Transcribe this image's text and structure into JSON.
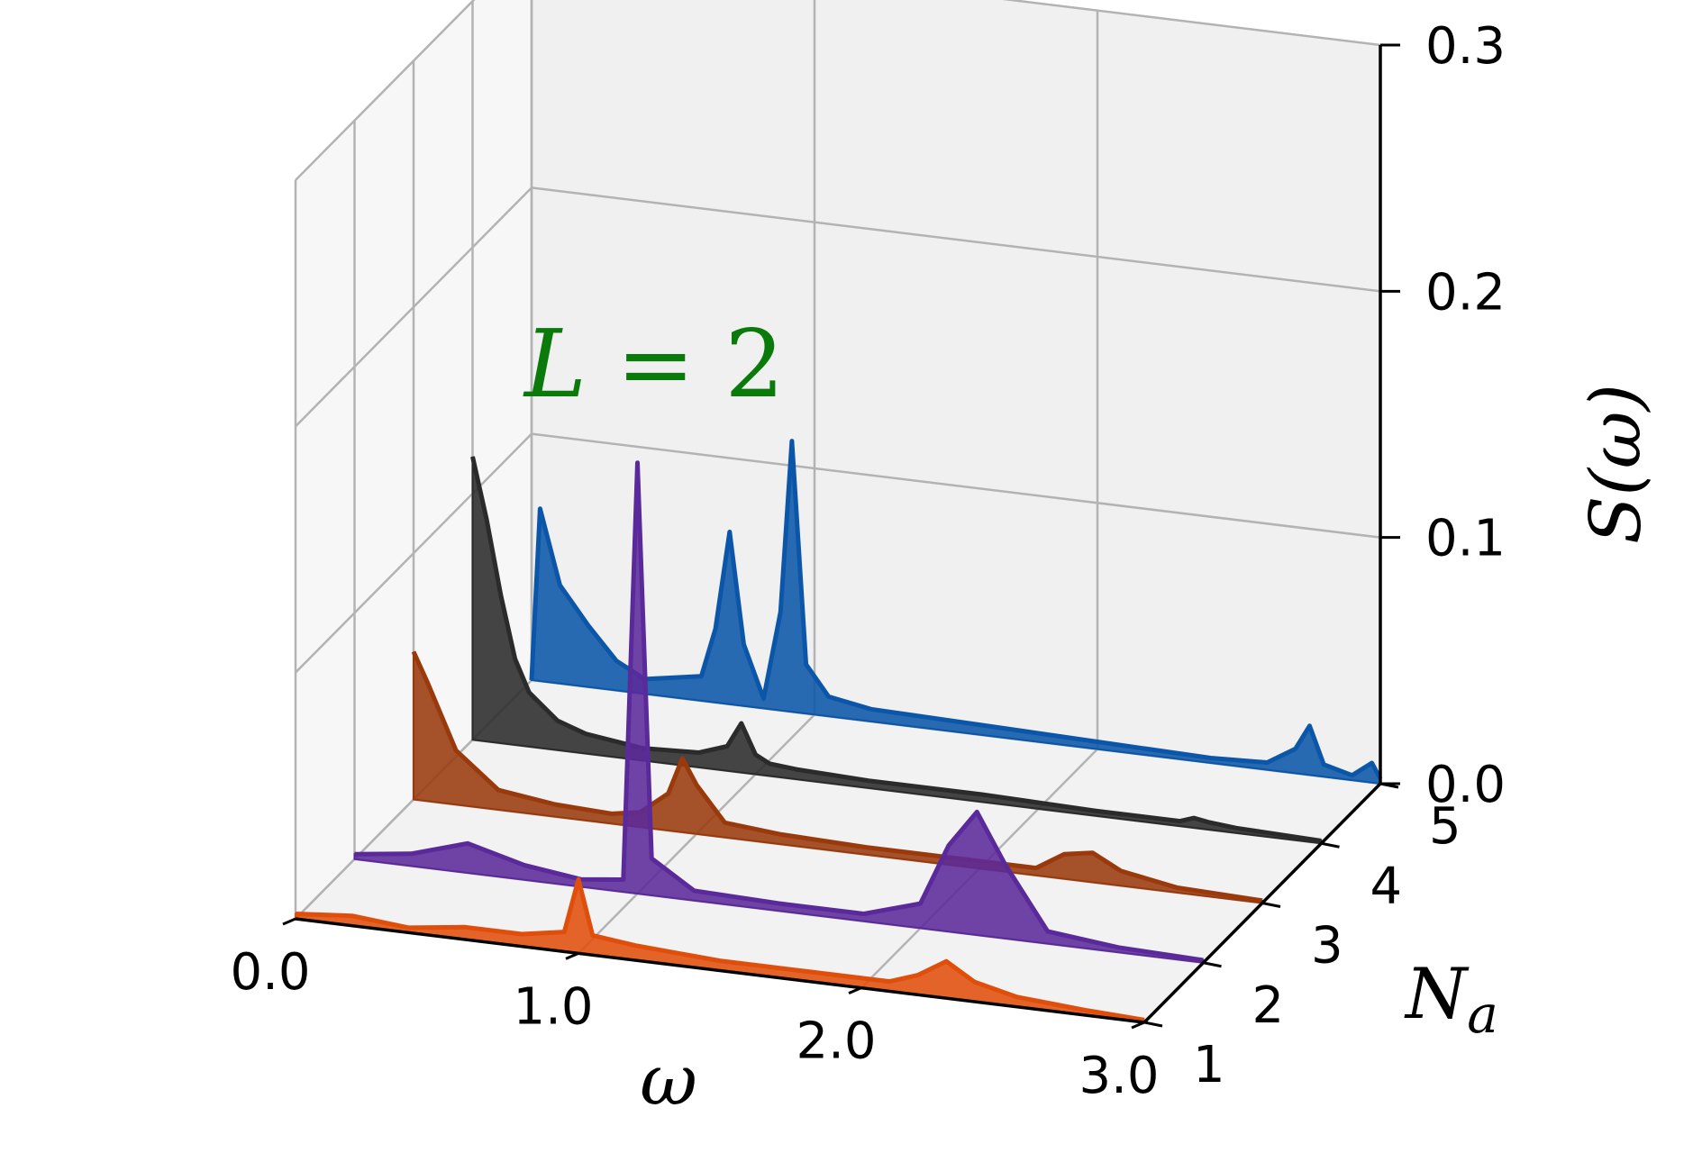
{
  "chart_data": {
    "type": "area",
    "annotation": {
      "var": "L",
      "eq": " = 2"
    },
    "xlabel": "ω",
    "ylabel_var": "N",
    "ylabel_sub": "a",
    "zlabel": "S(ω)",
    "xlim": [
      0.0,
      3.0
    ],
    "ylim": [
      1,
      5
    ],
    "zlim": [
      0.0,
      0.3
    ],
    "xticks": [
      "0.0",
      "1.0",
      "2.0",
      "3.0"
    ],
    "yticks": [
      "1",
      "2",
      "3",
      "4",
      "5"
    ],
    "zticks": [
      "0.0",
      "0.1",
      "0.2",
      "0.3"
    ],
    "grid": true,
    "colors": {
      "series_1": "#e04e0c",
      "series_2": "#5b2a9a",
      "series_3": "#9a3a0c",
      "series_4": "#2b2b2b",
      "series_5": "#0b56a8",
      "annotation": "#0a7a0a"
    },
    "series": [
      {
        "na": 1,
        "color_key": "series_1",
        "x": [
          0.0,
          0.2,
          0.4,
          0.6,
          0.8,
          0.95,
          1.0,
          1.05,
          1.2,
          1.5,
          1.8,
          2.1,
          2.2,
          2.3,
          2.4,
          2.55,
          2.8,
          3.0
        ],
        "z": [
          0.002,
          0.004,
          0.002,
          0.005,
          0.005,
          0.008,
          0.03,
          0.008,
          0.006,
          0.004,
          0.004,
          0.004,
          0.008,
          0.015,
          0.008,
          0.004,
          0.002,
          0.001
        ]
      },
      {
        "na": 2,
        "color_key": "series_2",
        "x": [
          0.0,
          0.2,
          0.4,
          0.6,
          0.8,
          0.95,
          1.0,
          1.05,
          1.2,
          1.5,
          1.8,
          2.0,
          2.1,
          2.2,
          2.3,
          2.45,
          2.7,
          3.0
        ],
        "z": [
          0.002,
          0.005,
          0.012,
          0.006,
          0.003,
          0.005,
          0.175,
          0.015,
          0.004,
          0.003,
          0.003,
          0.01,
          0.035,
          0.05,
          0.03,
          0.005,
          0.002,
          0.001
        ]
      },
      {
        "na": 3,
        "color_key": "series_3",
        "x": [
          0.0,
          0.05,
          0.15,
          0.3,
          0.5,
          0.7,
          0.8,
          0.9,
          0.95,
          1.0,
          1.1,
          1.3,
          1.6,
          1.9,
          2.2,
          2.3,
          2.4,
          2.5,
          2.7,
          3.0
        ],
        "z": [
          0.06,
          0.048,
          0.022,
          0.008,
          0.005,
          0.004,
          0.006,
          0.015,
          0.03,
          0.02,
          0.006,
          0.004,
          0.003,
          0.003,
          0.003,
          0.01,
          0.012,
          0.006,
          0.002,
          0.001
        ]
      },
      {
        "na": 4,
        "color_key": "series_4",
        "x": [
          0.0,
          0.05,
          0.1,
          0.15,
          0.2,
          0.3,
          0.4,
          0.6,
          0.8,
          0.9,
          0.95,
          1.0,
          1.05,
          1.15,
          1.4,
          1.8,
          2.2,
          2.5,
          2.55,
          2.6,
          2.7,
          3.0
        ],
        "z": [
          0.115,
          0.09,
          0.06,
          0.035,
          0.022,
          0.012,
          0.008,
          0.005,
          0.006,
          0.01,
          0.02,
          0.008,
          0.005,
          0.004,
          0.003,
          0.003,
          0.002,
          0.002,
          0.004,
          0.003,
          0.002,
          0.001
        ]
      },
      {
        "na": 5,
        "color_key": "series_5",
        "x": [
          0.0,
          0.03,
          0.1,
          0.2,
          0.3,
          0.4,
          0.6,
          0.65,
          0.7,
          0.75,
          0.82,
          0.88,
          0.92,
          0.97,
          1.05,
          1.2,
          1.6,
          2.0,
          2.4,
          2.6,
          2.7,
          2.75,
          2.8,
          2.9,
          2.97,
          3.0
        ],
        "z": [
          0.0,
          0.07,
          0.04,
          0.025,
          0.012,
          0.006,
          0.01,
          0.03,
          0.07,
          0.025,
          0.004,
          0.04,
          0.11,
          0.02,
          0.008,
          0.005,
          0.004,
          0.003,
          0.002,
          0.003,
          0.01,
          0.02,
          0.005,
          0.002,
          0.008,
          0.002
        ]
      }
    ]
  }
}
